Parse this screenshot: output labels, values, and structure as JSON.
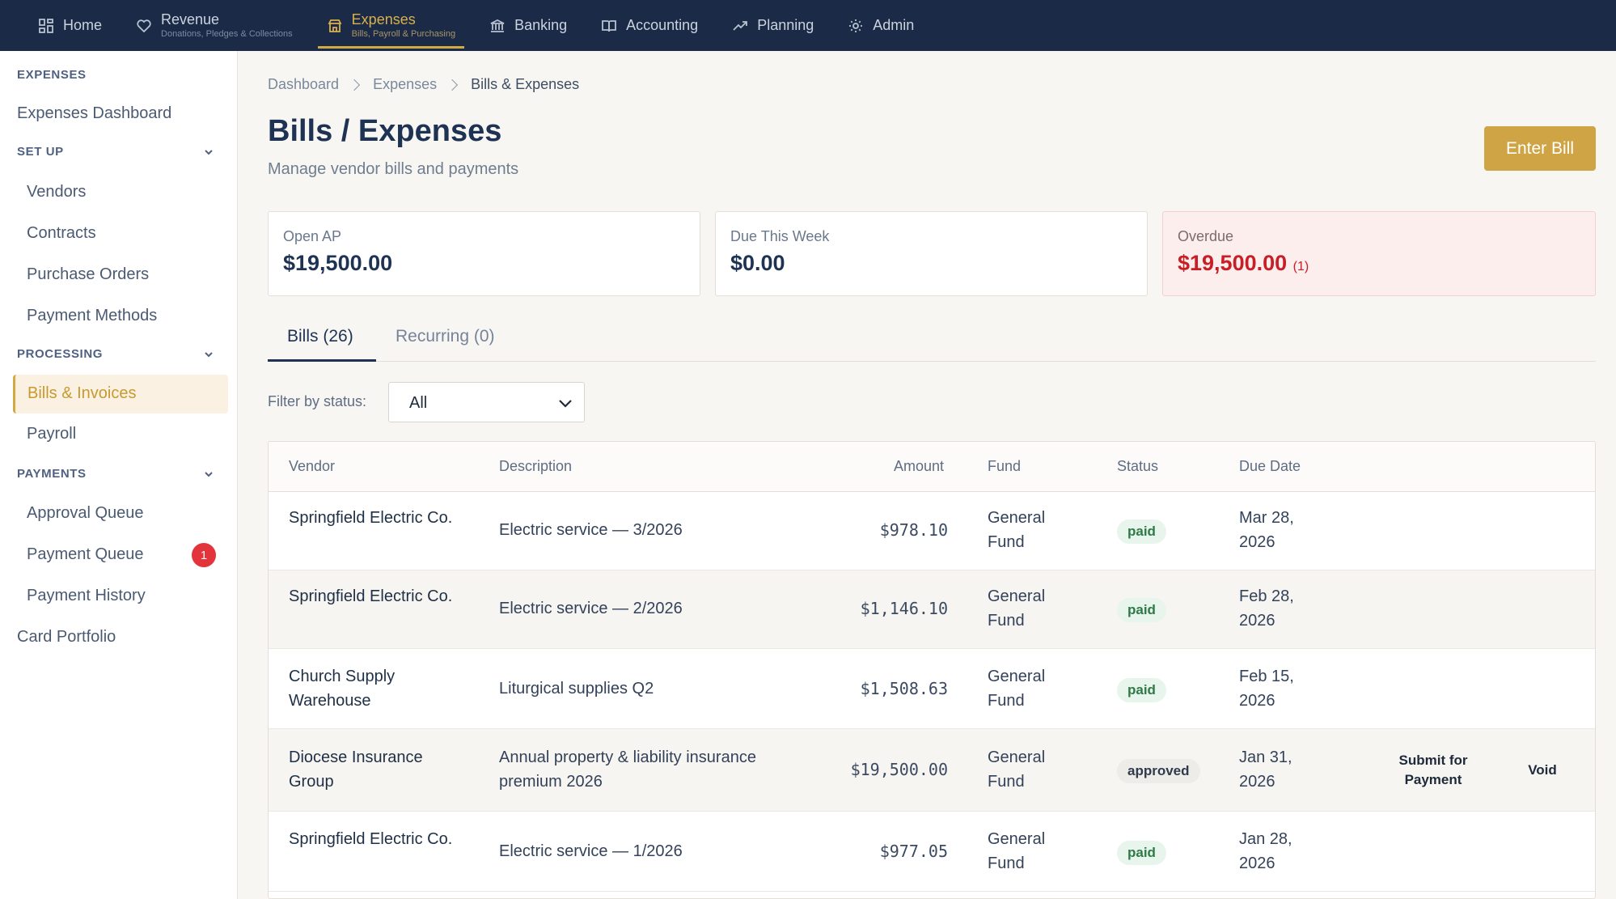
{
  "topnav": {
    "items": [
      {
        "label": "Home",
        "sub": ""
      },
      {
        "label": "Revenue",
        "sub": "Donations, Pledges & Collections"
      },
      {
        "label": "Expenses",
        "sub": "Bills, Payroll & Purchasing"
      },
      {
        "label": "Banking",
        "sub": ""
      },
      {
        "label": "Accounting",
        "sub": ""
      },
      {
        "label": "Planning",
        "sub": ""
      },
      {
        "label": "Admin",
        "sub": ""
      }
    ],
    "active": "Expenses"
  },
  "sidebar": {
    "section_title": "EXPENSES",
    "dashboard": "Expenses Dashboard",
    "setup_title": "SET UP",
    "setup_items": [
      "Vendors",
      "Contracts",
      "Purchase Orders",
      "Payment Methods"
    ],
    "processing_title": "PROCESSING",
    "processing_items": [
      "Bills & Invoices",
      "Payroll"
    ],
    "payments_title": "PAYMENTS",
    "payments_items": [
      "Approval Queue",
      "Payment Queue",
      "Payment History"
    ],
    "payment_queue_badge": "1",
    "card_portfolio": "Card Portfolio"
  },
  "breadcrumb": [
    "Dashboard",
    "Expenses",
    "Bills & Expenses"
  ],
  "page": {
    "title": "Bills / Expenses",
    "subtitle": "Manage vendor bills and payments",
    "enter_bill": "Enter Bill"
  },
  "cards": {
    "open_ap": {
      "label": "Open AP",
      "value": "$19,500.00"
    },
    "due_week": {
      "label": "Due This Week",
      "value": "$0.00"
    },
    "overdue": {
      "label": "Overdue",
      "value": "$19,500.00",
      "count": "(1)"
    }
  },
  "tabs": [
    "Bills (26)",
    "Recurring (0)"
  ],
  "filter": {
    "label": "Filter by status:",
    "value": "All"
  },
  "table": {
    "headers": [
      "Vendor",
      "Description",
      "Amount",
      "Fund",
      "Status",
      "Due Date"
    ],
    "rows": [
      {
        "vendor": "Springfield Electric Co.",
        "description": "Electric service — 3/2026",
        "amount": "$978.10",
        "fund": "General Fund",
        "status": "paid",
        "due": "Mar 28, 2026"
      },
      {
        "vendor": "Springfield Electric Co.",
        "description": "Electric service — 2/2026",
        "amount": "$1,146.10",
        "fund": "General Fund",
        "status": "paid",
        "due": "Feb 28, 2026"
      },
      {
        "vendor": "Church Supply Warehouse",
        "description": "Liturgical supplies Q2",
        "amount": "$1,508.63",
        "fund": "General Fund",
        "status": "paid",
        "due": "Feb 15, 2026"
      },
      {
        "vendor": "Diocese Insurance Group",
        "description": "Annual property & liability insurance premium 2026",
        "amount": "$19,500.00",
        "fund": "General Fund",
        "status": "approved",
        "due": "Jan 31, 2026",
        "action1": "Submit for Payment",
        "action2": "Void"
      },
      {
        "vendor": "Springfield Electric Co.",
        "description": "Electric service — 1/2026",
        "amount": "$977.05",
        "fund": "General Fund",
        "status": "paid",
        "due": "Jan 28, 2026"
      }
    ]
  },
  "colors": {
    "nav_bg": "#1b2a47",
    "accent": "#cfa445",
    "danger": "#c71f25",
    "paid": "#2e7a46"
  }
}
